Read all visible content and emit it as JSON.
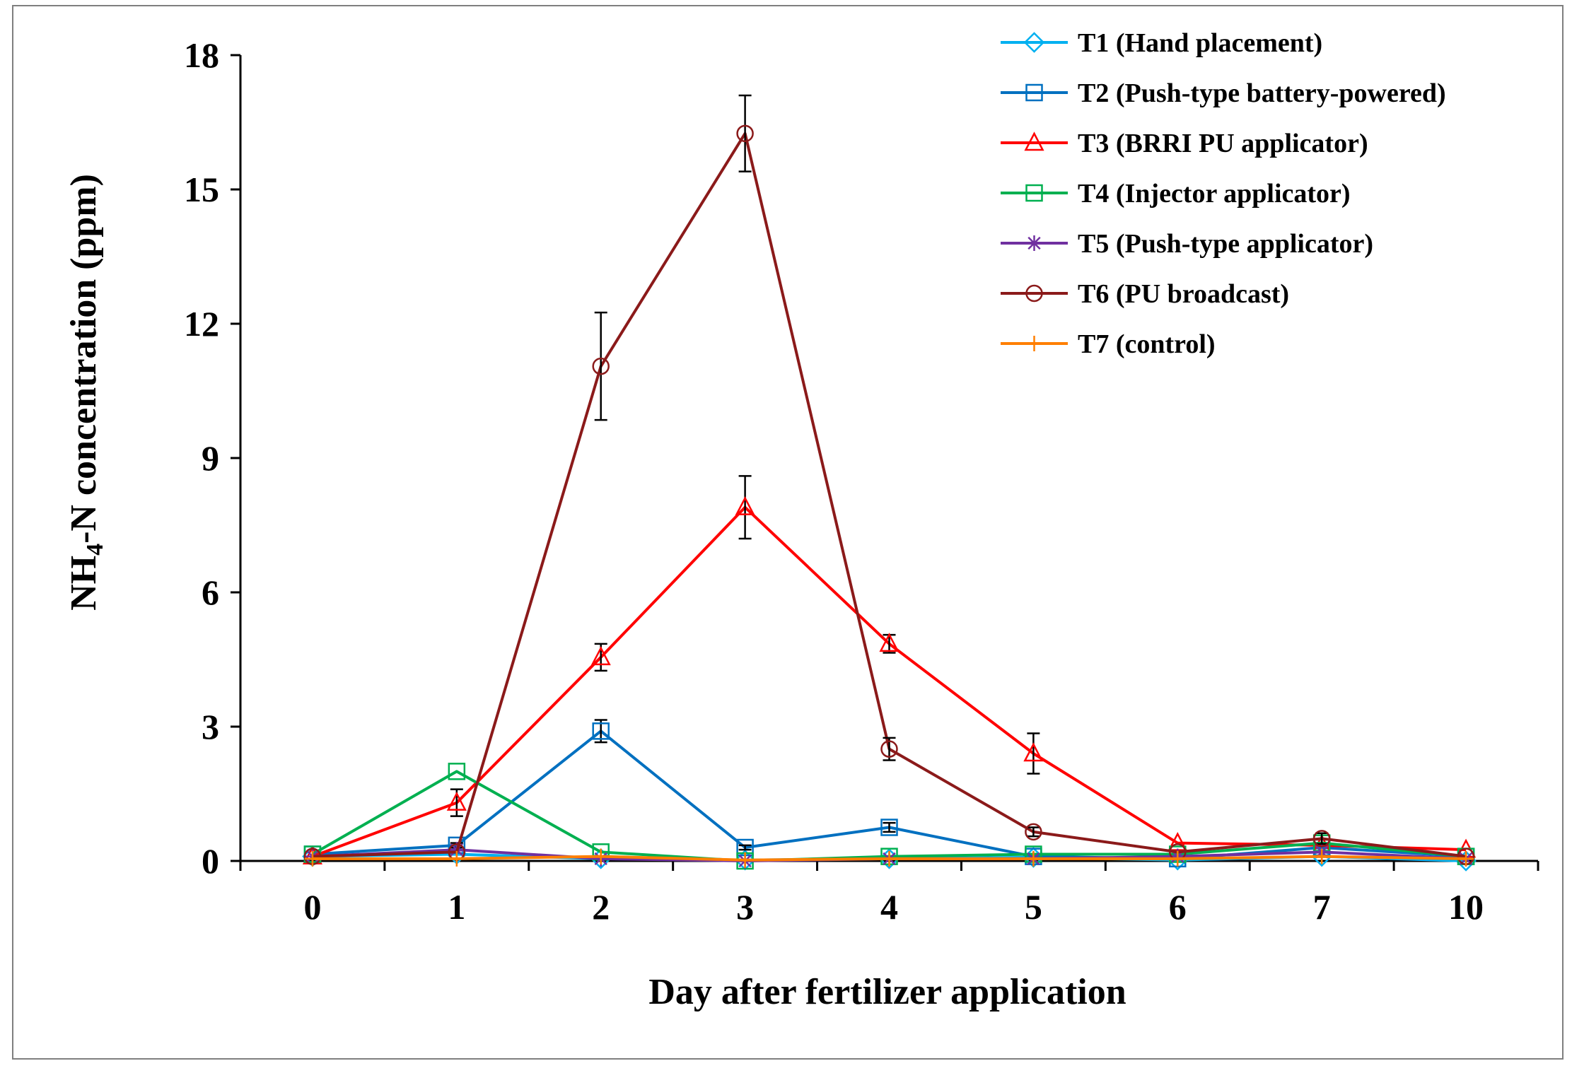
{
  "chart_data": {
    "type": "line",
    "title": "",
    "xlabel": "Day after fertilizer application",
    "ylabel_main": "NH",
    "ylabel_sub": "4",
    "ylabel_rest": "-N concentration (ppm)",
    "ylim": [
      0,
      18
    ],
    "yticks": [
      "0",
      "3",
      "6",
      "9",
      "12",
      "15",
      "18"
    ],
    "categories": [
      "0",
      "1",
      "2",
      "3",
      "4",
      "5",
      "6",
      "7",
      "10"
    ],
    "legend_position": "top-right",
    "series": [
      {
        "key": "t1",
        "name": "T1 (Hand placement)",
        "color": "#00b0f0",
        "marker": "diamond",
        "values": [
          0.1,
          0.15,
          0.05,
          0.02,
          0.05,
          0.08,
          0.02,
          0.1,
          0.0
        ],
        "errors": [
          0,
          0,
          0,
          0,
          0,
          0,
          0,
          0,
          0
        ]
      },
      {
        "key": "t2",
        "name": "T2 (Push-type battery-powered)",
        "color": "#0070c0",
        "marker": "square",
        "values": [
          0.15,
          0.35,
          2.9,
          0.3,
          0.75,
          0.1,
          0.05,
          0.3,
          0.1
        ],
        "errors": [
          0,
          0.05,
          0.25,
          0.05,
          0.1,
          0,
          0,
          0,
          0
        ]
      },
      {
        "key": "t3",
        "name": "T3 (BRRI PU applicator)",
        "color": "#ff0000",
        "marker": "triangle",
        "values": [
          0.1,
          1.3,
          4.55,
          7.9,
          4.85,
          2.4,
          0.4,
          0.35,
          0.25
        ],
        "errors": [
          0,
          0.3,
          0.3,
          0.7,
          0.2,
          0.45,
          0,
          0,
          0
        ]
      },
      {
        "key": "t4",
        "name": "T4 (Injector applicator)",
        "color": "#00b050",
        "marker": "square",
        "values": [
          0.15,
          2.0,
          0.2,
          0.0,
          0.1,
          0.15,
          0.15,
          0.4,
          0.1
        ],
        "errors": [
          0,
          0,
          0,
          0,
          0,
          0,
          0,
          0,
          0
        ]
      },
      {
        "key": "t5",
        "name": "T5 (Push-type applicator)",
        "color": "#7030a0",
        "marker": "star",
        "values": [
          0.1,
          0.25,
          0.05,
          0.0,
          0.05,
          0.05,
          0.1,
          0.2,
          0.05
        ],
        "errors": [
          0,
          0,
          0,
          0,
          0,
          0,
          0,
          0,
          0
        ]
      },
      {
        "key": "t6",
        "name": "T6 (PU broadcast)",
        "color": "#8b1a1a",
        "marker": "circle",
        "values": [
          0.1,
          0.2,
          11.05,
          16.25,
          2.5,
          0.65,
          0.2,
          0.5,
          0.1
        ],
        "errors": [
          0,
          0,
          1.2,
          0.85,
          0.25,
          0.1,
          0,
          0.12,
          0
        ]
      },
      {
        "key": "t7",
        "name": "T7 (control)",
        "color": "#ff7f00",
        "marker": "plus",
        "values": [
          0.05,
          0.05,
          0.1,
          0.02,
          0.05,
          0.05,
          0.05,
          0.1,
          0.05
        ],
        "errors": [
          0,
          0,
          0,
          0,
          0,
          0,
          0,
          0,
          0
        ]
      }
    ]
  }
}
